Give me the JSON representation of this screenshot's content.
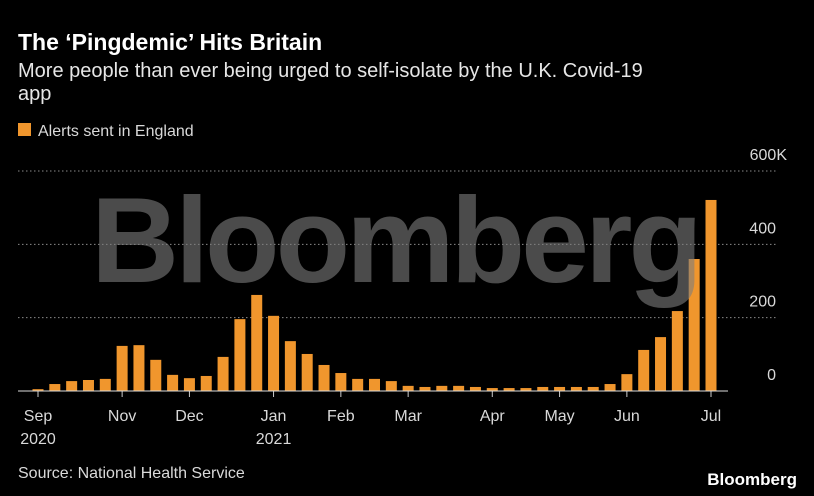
{
  "chart_data": {
    "type": "bar",
    "title": "The ‘Pingdemic’ Hits Britain",
    "subtitle": "More people than ever being urged to self-isolate by the U.K. Covid-19 app",
    "legend_label": "Alerts sent in England",
    "source": "Source: National Health Service",
    "watermark": "Bloomberg",
    "logo": "Bloomberg",
    "color": "#f0962d",
    "categories": [
      "Sep",
      null,
      null,
      null,
      null,
      "Nov",
      null,
      null,
      null,
      "Dec",
      null,
      null,
      null,
      null,
      "Jan",
      null,
      null,
      null,
      "Feb",
      null,
      null,
      null,
      "Mar",
      null,
      null,
      null,
      null,
      "Apr",
      null,
      null,
      null,
      "May",
      null,
      null,
      null,
      "Jun",
      null,
      null,
      null,
      null,
      "Jul"
    ],
    "x_sublabels": [
      "2020",
      null,
      null,
      null,
      null,
      null,
      null,
      null,
      null,
      null,
      null,
      null,
      null,
      null,
      "2021",
      null,
      null,
      null,
      null,
      null,
      null,
      null,
      null,
      null,
      null,
      null,
      null,
      null,
      null,
      null,
      null,
      null,
      null,
      null,
      null,
      null,
      null,
      null,
      null,
      null,
      null
    ],
    "values": [
      5,
      19,
      27,
      30,
      33,
      123,
      125,
      85,
      44,
      35,
      41,
      93,
      196,
      262,
      205,
      136,
      101,
      71,
      49,
      33,
      33,
      27,
      14,
      11,
      14,
      14,
      11,
      8,
      8,
      8,
      11,
      11,
      11,
      11,
      19,
      46,
      112,
      147,
      218,
      360,
      521
    ],
    "ylim": [
      0,
      600
    ],
    "yticks": [
      0,
      200,
      400,
      {
        "value": 600,
        "label": "600K"
      }
    ],
    "grid": true
  }
}
